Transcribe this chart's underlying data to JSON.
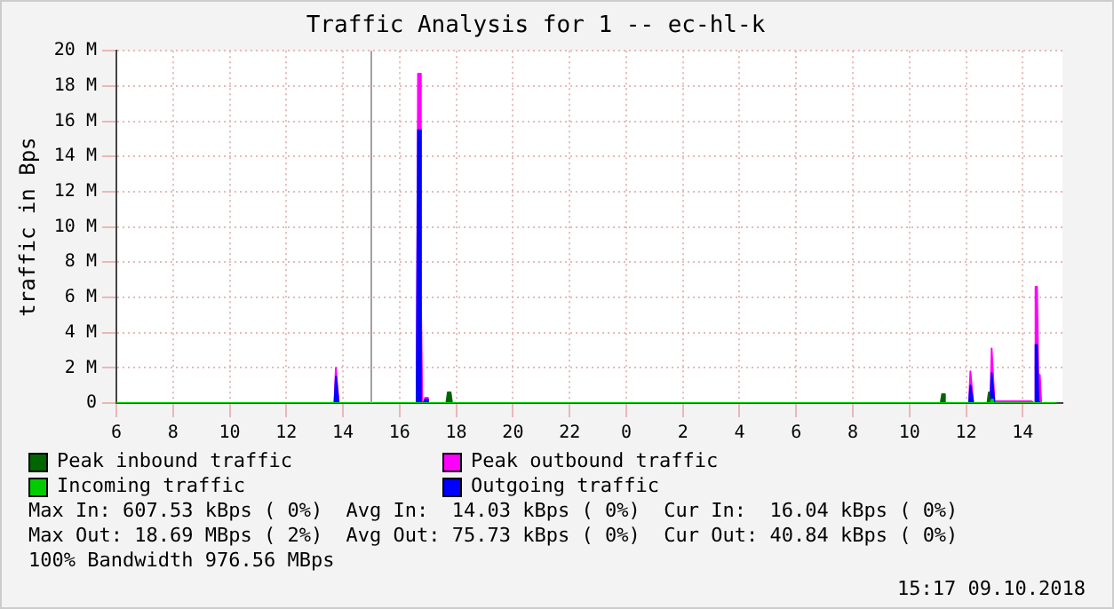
{
  "chart_data": {
    "type": "area",
    "title": "Traffic Analysis for 1 -- ec-hl-k",
    "ylabel": "traffic in Bps",
    "legend": "bottom left",
    "grid": true,
    "xlim": [
      "2018-10-08T06:00",
      "2018-10-09T15:24"
    ],
    "xticks": [
      {
        "value": "2018-10-08T06:00",
        "label": "6"
      },
      {
        "value": "2018-10-08T08:00",
        "label": "8"
      },
      {
        "value": "2018-10-08T10:00",
        "label": "10"
      },
      {
        "value": "2018-10-08T12:00",
        "label": "12"
      },
      {
        "value": "2018-10-08T14:00",
        "label": "14"
      },
      {
        "value": "2018-10-08T16:00",
        "label": "16"
      },
      {
        "value": "2018-10-08T18:00",
        "label": "18"
      },
      {
        "value": "2018-10-08T20:00",
        "label": "20"
      },
      {
        "value": "2018-10-08T22:00",
        "label": "22"
      },
      {
        "value": "2018-10-09T00:00",
        "label": "0"
      },
      {
        "value": "2018-10-09T02:00",
        "label": "2"
      },
      {
        "value": "2018-10-09T04:00",
        "label": "4"
      },
      {
        "value": "2018-10-09T06:00",
        "label": "6"
      },
      {
        "value": "2018-10-09T08:00",
        "label": "8"
      },
      {
        "value": "2018-10-09T10:00",
        "label": "10"
      },
      {
        "value": "2018-10-09T12:00",
        "label": "12"
      },
      {
        "value": "2018-10-09T14:00",
        "label": "14"
      }
    ],
    "ylim": [
      0,
      20
    ],
    "yticks": [
      0,
      {
        "value": 2,
        "label": "2 M"
      },
      {
        "value": 4,
        "label": "4 M"
      },
      {
        "value": 6,
        "label": "6 M"
      },
      {
        "value": 8,
        "label": "8 M"
      },
      {
        "value": 10,
        "label": "10 M"
      },
      {
        "value": 12,
        "label": "12 M"
      },
      {
        "value": 14,
        "label": "14 M"
      },
      {
        "value": 16,
        "label": "16 M"
      },
      {
        "value": 18,
        "label": "18 M"
      },
      {
        "value": 20,
        "label": "20 M"
      }
    ],
    "ref_lines": [
      {
        "axis": "x",
        "value": "2018-10-08T15:00",
        "label": null,
        "color": "#a0a0a0"
      }
    ],
    "series": [
      {
        "name": "Peak inbound traffic",
        "color": "#006600",
        "x": [
          "2018-10-08T06:00",
          "2018-10-08T17:39",
          "2018-10-08T17:42",
          "2018-10-08T17:48",
          "2018-10-08T17:51",
          "2018-10-09T11:06",
          "2018-10-09T11:09",
          "2018-10-09T11:12",
          "2018-10-09T11:15",
          "2018-10-09T12:45",
          "2018-10-09T12:48",
          "2018-10-09T12:51",
          "2018-10-09T15:12"
        ],
        "values": [
          0,
          0,
          0.6,
          0.6,
          0,
          0,
          0.5,
          0.5,
          0,
          0,
          0.6,
          0,
          0
        ]
      },
      {
        "name": "Incoming traffic",
        "color": "#00cc00",
        "x": [
          "2018-10-08T06:00",
          "2018-10-09T12:51",
          "2018-10-09T12:54",
          "2018-10-09T12:57",
          "2018-10-09T15:12"
        ],
        "values": [
          0,
          0,
          0.2,
          0,
          0
        ]
      },
      {
        "name": "Peak outbound traffic",
        "color": "#ff00ff",
        "x": [
          "2018-10-08T06:00",
          "2018-10-08T13:42",
          "2018-10-08T13:45",
          "2018-10-08T13:48",
          "2018-10-08T13:51",
          "2018-10-08T16:36",
          "2018-10-08T16:39",
          "2018-10-08T16:42",
          "2018-10-08T16:45",
          "2018-10-08T16:48",
          "2018-10-08T16:51",
          "2018-10-08T16:54",
          "2018-10-08T16:57",
          "2018-10-08T17:00",
          "2018-10-09T12:06",
          "2018-10-09T12:09",
          "2018-10-09T12:12",
          "2018-10-09T12:15",
          "2018-10-09T12:51",
          "2018-10-09T12:54",
          "2018-10-09T12:57",
          "2018-10-09T13:00",
          "2018-10-09T13:18",
          "2018-10-09T14:18",
          "2018-10-09T14:24",
          "2018-10-09T14:27",
          "2018-10-09T14:30",
          "2018-10-09T14:33",
          "2018-10-09T14:36",
          "2018-10-09T14:39",
          "2018-10-09T15:12"
        ],
        "values": [
          0,
          0,
          2.0,
          2.0,
          0,
          0,
          18.7,
          18.7,
          6.1,
          0,
          0,
          0.3,
          0.3,
          0,
          0,
          1.8,
          1.8,
          0,
          0,
          3.1,
          3.1,
          0.1,
          0.1,
          0.1,
          0,
          6.6,
          6.6,
          1.6,
          1.6,
          0,
          0
        ]
      },
      {
        "name": "Outgoing traffic",
        "color": "#0000ff",
        "x": [
          "2018-10-08T06:00",
          "2018-10-08T13:42",
          "2018-10-08T13:45",
          "2018-10-08T13:48",
          "2018-10-08T13:51",
          "2018-10-08T16:36",
          "2018-10-08T16:39",
          "2018-10-08T16:42",
          "2018-10-08T16:45",
          "2018-10-08T16:51",
          "2018-10-08T16:54",
          "2018-10-08T16:57",
          "2018-10-08T17:00",
          "2018-10-09T12:06",
          "2018-10-09T12:09",
          "2018-10-09T12:12",
          "2018-10-09T12:15",
          "2018-10-09T12:51",
          "2018-10-09T12:54",
          "2018-10-09T12:57",
          "2018-10-09T13:00",
          "2018-10-09T14:24",
          "2018-10-09T14:27",
          "2018-10-09T14:30",
          "2018-10-09T14:33",
          "2018-10-09T14:36",
          "2018-10-09T15:12"
        ],
        "values": [
          0,
          0,
          1.5,
          1.5,
          0,
          0,
          15.5,
          15.5,
          0,
          0,
          0.2,
          0.2,
          0,
          0,
          1.0,
          1.0,
          0,
          0,
          1.7,
          1.7,
          0,
          0,
          3.3,
          3.3,
          0.1,
          0,
          0
        ]
      }
    ],
    "annotations": [
      "Max In: 607.53 kBps ( 0%)  Avg In:  14.03 kBps ( 0%)  Cur In:  16.04 kBps ( 0%)",
      "Max Out: 18.69 MBps ( 2%)  Avg Out: 75.73 kBps ( 0%)  Cur Out: 40.84 kBps ( 0%)",
      "100% Bandwidth 976.56 MBps",
      "15:17 09.10.2018"
    ]
  }
}
